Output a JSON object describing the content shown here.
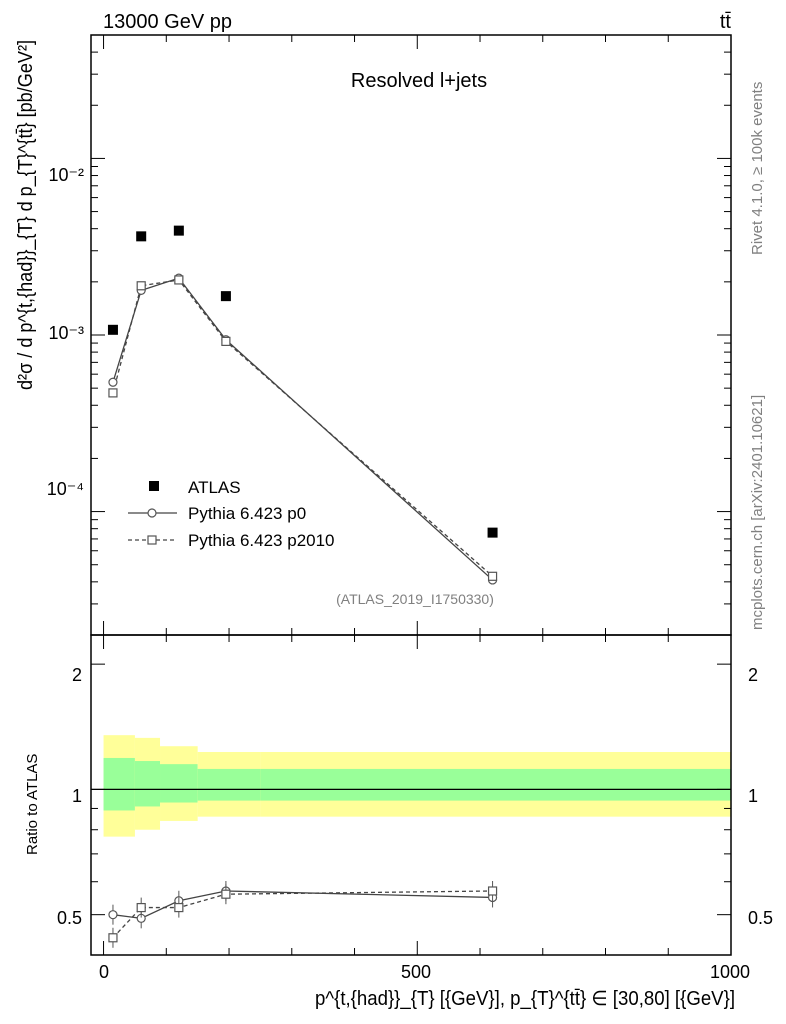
{
  "header": {
    "energy": "13000 GeV pp",
    "process": "tt̄",
    "panel_title": "Resolved l+jets",
    "analysis_id": "(ATLAS_2019_I1750330)",
    "side_rivet": "Rivet 4.1.0, ≥ 100k events",
    "side_mcplots": "mcplots.cern.ch [arXiv:2401.10621]"
  },
  "axes": {
    "y_main_label": "d²σ / d p^{t,{had}}_{T} d p_{T}^{tt̄} [pb/GeV²]",
    "y_ratio_label": "Ratio to ATLAS",
    "x_label": "p^{t,{had}}_{T} [{GeV}], p_{T}^{tt̄} ∈ [30,80] [{GeV}]",
    "x_ticks": [
      "0",
      "500",
      "1000"
    ],
    "y_main_ticks": [
      "10⁻⁴",
      "10⁻³",
      "10⁻²"
    ],
    "y_ratio_ticks": [
      "0.5",
      "1",
      "2"
    ]
  },
  "legend": {
    "items": [
      {
        "label": "ATLAS"
      },
      {
        "label": "Pythia 6.423 p0"
      },
      {
        "label": "Pythia 6.423 p2010"
      }
    ]
  },
  "chart_data": {
    "type": "scatter",
    "x_range": [
      -20,
      1000
    ],
    "y_range_log": [
      2e-05,
      0.05
    ],
    "bins": [
      [
        0,
        50
      ],
      [
        50,
        90
      ],
      [
        90,
        150
      ],
      [
        150,
        250
      ],
      [
        250,
        1000
      ]
    ],
    "x": [
      15,
      60,
      120,
      195,
      620
    ],
    "series": [
      {
        "name": "ATLAS",
        "values": [
          0.00107,
          0.00362,
          0.0039,
          0.00166,
          7.6e-05
        ]
      },
      {
        "name": "Pythia 6.423 p0",
        "values": [
          0.00054,
          0.00179,
          0.0021,
          0.00094,
          4.1e-05
        ]
      },
      {
        "name": "Pythia 6.423 p2010",
        "values": [
          0.00047,
          0.0019,
          0.00205,
          0.00092,
          4.3e-05
        ]
      }
    ],
    "ratio": {
      "ylim": [
        0.4,
        2.35
      ],
      "yellow_band": [
        [
          0.77,
          1.35
        ],
        [
          0.8,
          1.33
        ],
        [
          0.84,
          1.27
        ],
        [
          0.86,
          1.23
        ],
        [
          0.86,
          1.23
        ]
      ],
      "green_band": [
        [
          0.89,
          1.19
        ],
        [
          0.91,
          1.17
        ],
        [
          0.93,
          1.15
        ],
        [
          0.94,
          1.12
        ],
        [
          0.94,
          1.12
        ]
      ],
      "series": [
        {
          "name": "Pythia 6.423 p0",
          "values": [
            0.5,
            0.49,
            0.54,
            0.57,
            0.55
          ]
        },
        {
          "name": "Pythia 6.423 p2010",
          "values": [
            0.44,
            0.52,
            0.52,
            0.56,
            0.57
          ]
        }
      ]
    }
  }
}
